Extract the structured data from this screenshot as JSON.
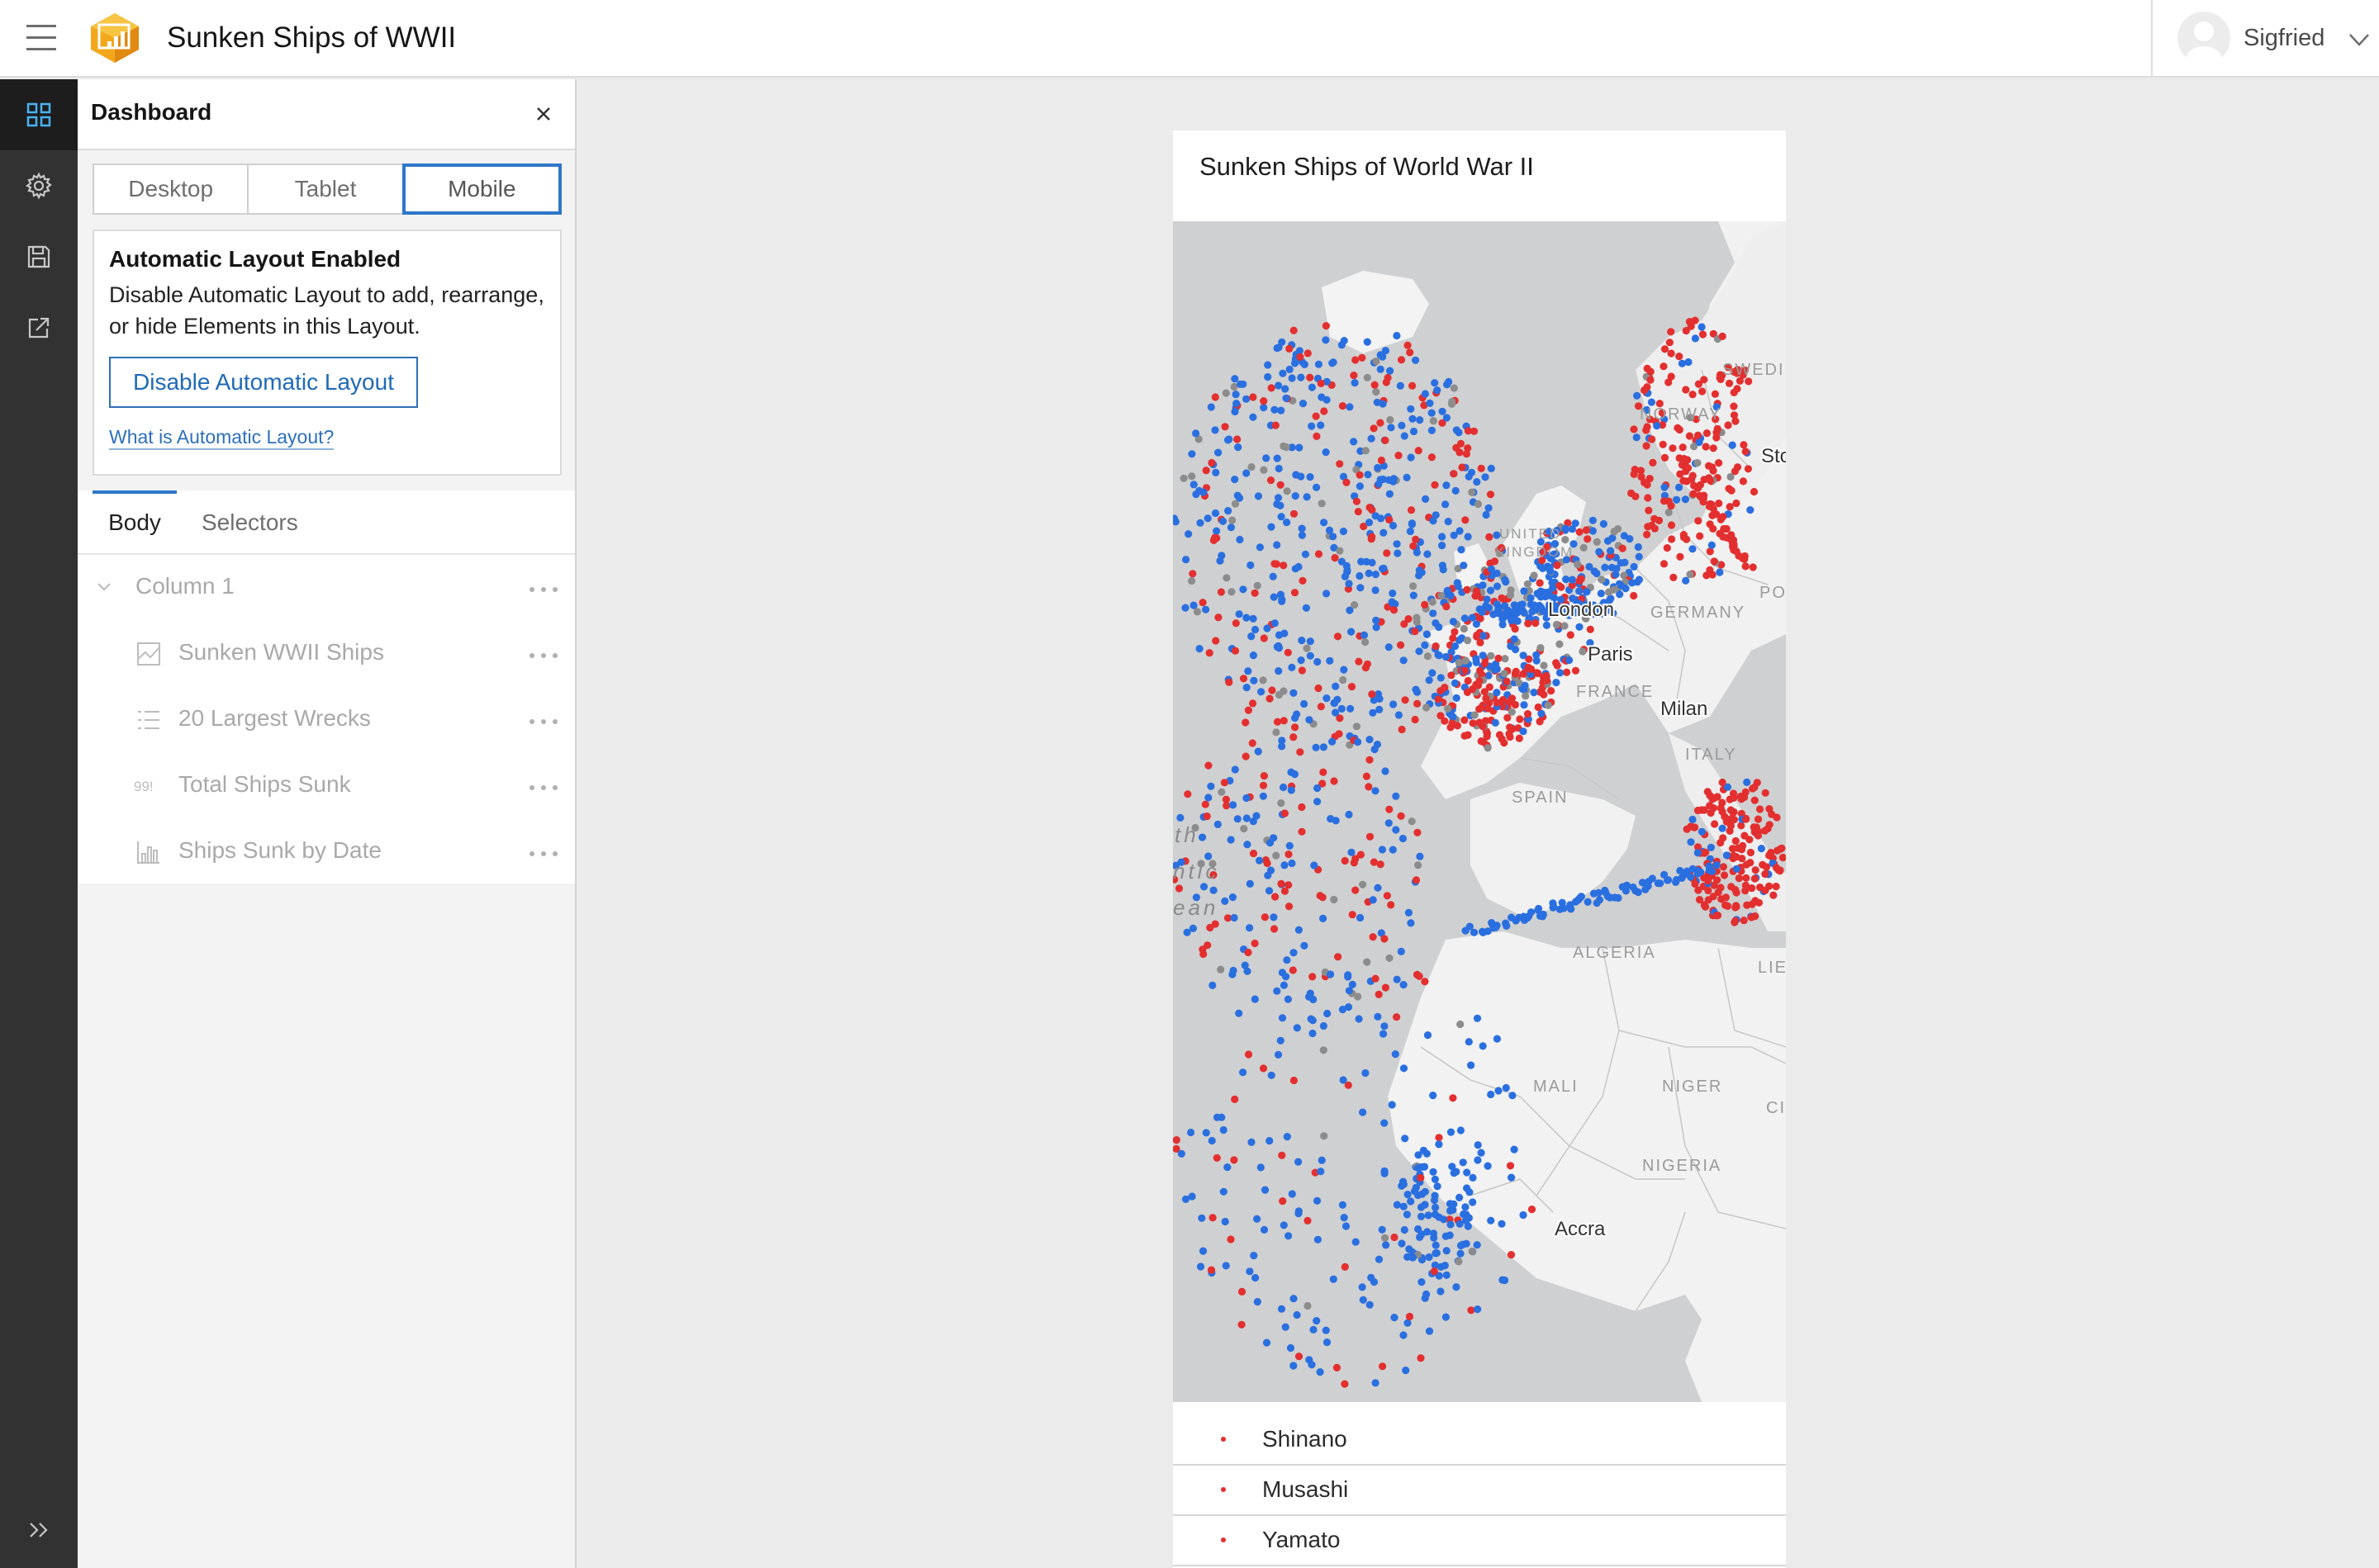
{
  "header": {
    "app_title": "Sunken Ships of WWII",
    "user_name": "Sigfried"
  },
  "panel": {
    "title": "Dashboard",
    "layout_modes": [
      "Desktop",
      "Tablet",
      "Mobile"
    ],
    "active_mode": "Mobile",
    "notice": {
      "title": "Automatic Layout Enabled",
      "text": "Disable Automatic Layout to add, rearrange, or hide Elements in this Layout.",
      "button_label": "Disable Automatic Layout",
      "link_label": "What is Automatic Layout?"
    },
    "tabs": {
      "body": "Body",
      "selectors": "Selectors"
    },
    "tree": {
      "column_label": "Column 1",
      "elements": [
        {
          "label": "Sunken WWII Ships",
          "icon": "map-element-icon"
        },
        {
          "label": "20 Largest Wrecks",
          "icon": "list-element-icon"
        },
        {
          "label": "Total Ships Sunk",
          "icon": "indicator-element-icon"
        },
        {
          "label": "Ships Sunk by Date",
          "icon": "serial-chart-element-icon"
        }
      ]
    }
  },
  "canvas": {
    "card_title": "Sunken Ships of World War II",
    "map_labels": {
      "sweden": "SWEDI",
      "norway": "NORWAY",
      "stockholm": "Stock",
      "united_kingdom_1": "UNITED",
      "united_kingdom_2": "KINGDOM",
      "london": "London",
      "germany": "GERMANY",
      "po": "PO",
      "paris": "Paris",
      "france": "FRANCE",
      "milan": "Milan",
      "italy": "ITALY",
      "spain": "SPAIN",
      "north_1": "th",
      "north_2": "ntic",
      "north_3": "ean",
      "algeria": "ALGERIA",
      "libya": "LIE",
      "mali": "MALI",
      "niger": "NIGER",
      "chad": "CI",
      "nigeria": "NIGERIA",
      "accra": "Accra"
    },
    "legend_colors": {
      "red": "#e32f2f",
      "blue": "#2a6fe0",
      "gray": "#8c8c8c",
      "orange": "#f0a21a"
    },
    "list_items": [
      "Shinano",
      "Musashi",
      "Yamato"
    ]
  }
}
